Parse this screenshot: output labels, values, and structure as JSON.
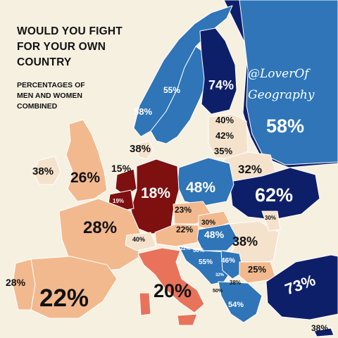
{
  "title_lines": [
    "WOULD YOU FIGHT",
    "FOR YOUR OWN",
    "COUNTRY"
  ],
  "subtitle_lines": [
    "PERCENTAGES OF",
    "MEN AND WOMEN",
    "COMBINED"
  ],
  "credit_lines": [
    "@LoverOf",
    "Geography"
  ],
  "legend_colors": {
    "very_low": "#7e1010",
    "low": "#e8735a",
    "lower_mid": "#f2b98e",
    "upper_mid": "#2f75b8",
    "high": "#0e1f6a",
    "no_data": "#f4e2cc",
    "sea": "#f6f0e1"
  },
  "labels": [
    {
      "id": "norway",
      "text": "58%"
    },
    {
      "id": "sweden",
      "text": "55%"
    },
    {
      "id": "finland",
      "text": "74%"
    },
    {
      "id": "russia",
      "text": "58%"
    },
    {
      "id": "estonia",
      "text": "40%"
    },
    {
      "id": "latvia",
      "text": "42%"
    },
    {
      "id": "lithuania",
      "text": "35%"
    },
    {
      "id": "denmark",
      "text": "38%"
    },
    {
      "id": "ireland",
      "text": "38%"
    },
    {
      "id": "uk",
      "text": "26%"
    },
    {
      "id": "netherlands",
      "text": "15%"
    },
    {
      "id": "belgium",
      "text": "19%"
    },
    {
      "id": "germany",
      "text": "18%"
    },
    {
      "id": "poland",
      "text": "48%"
    },
    {
      "id": "belarus",
      "text": "32%"
    },
    {
      "id": "ukraine",
      "text": "62%"
    },
    {
      "id": "czechia",
      "text": "23%"
    },
    {
      "id": "france",
      "text": "28%"
    },
    {
      "id": "switzerland",
      "text": "40%"
    },
    {
      "id": "austria",
      "text": "22%"
    },
    {
      "id": "slovakia",
      "text": "30%"
    },
    {
      "id": "hungary",
      "text": "48%"
    },
    {
      "id": "moldova",
      "text": "30%"
    },
    {
      "id": "romania",
      "text": "38%"
    },
    {
      "id": "slovenia",
      "text": "22%"
    },
    {
      "id": "croatia",
      "text": "50%"
    },
    {
      "id": "bosnia",
      "text": "55%"
    },
    {
      "id": "serbia",
      "text": "46%"
    },
    {
      "id": "bulgaria",
      "text": "25%"
    },
    {
      "id": "montenegro",
      "text": "32%"
    },
    {
      "id": "macedonia",
      "text": "38%"
    },
    {
      "id": "albania",
      "text": "50%"
    },
    {
      "id": "greece",
      "text": "54%"
    },
    {
      "id": "turkey",
      "text": "73%"
    },
    {
      "id": "portugal",
      "text": "28%"
    },
    {
      "id": "spain",
      "text": "22%"
    },
    {
      "id": "italy",
      "text": "20%"
    },
    {
      "id": "cyprus",
      "text": "38%"
    }
  ]
}
